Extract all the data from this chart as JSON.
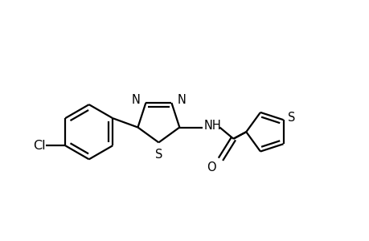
{
  "bg_color": "#ffffff",
  "line_color": "#000000",
  "lw": 1.6,
  "fs": 10.5,
  "fig_width": 4.6,
  "fig_height": 3.0,
  "dpi": 100,
  "xlim": [
    -4.8,
    3.2
  ],
  "ylim": [
    -1.6,
    1.8
  ]
}
